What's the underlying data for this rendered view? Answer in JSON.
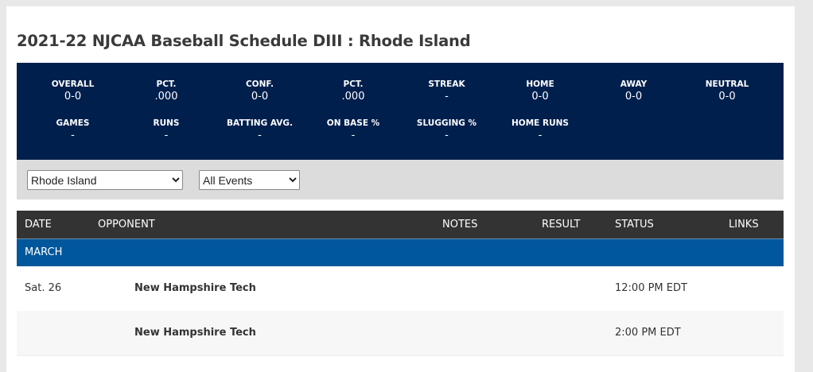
{
  "title": "2021-22 NJCAA Baseball Schedule DIII : Rhode Island",
  "stats": [
    {
      "label": "OVERALL",
      "value": "0-0"
    },
    {
      "label": "PCT.",
      "value": ".000"
    },
    {
      "label": "CONF.",
      "value": "0-0"
    },
    {
      "label": "PCT.",
      "value": ".000"
    },
    {
      "label": "STREAK",
      "value": "-"
    },
    {
      "label": "HOME",
      "value": "0-0"
    },
    {
      "label": "AWAY",
      "value": "0-0"
    },
    {
      "label": "NEUTRAL",
      "value": "0-0"
    },
    {
      "label": "GAMES",
      "value": "-"
    },
    {
      "label": "RUNS",
      "value": "-"
    },
    {
      "label": "BATTING AVG.",
      "value": "-"
    },
    {
      "label": "ON BASE %",
      "value": "-"
    },
    {
      "label": "SLUGGING %",
      "value": "-"
    },
    {
      "label": "HOME RUNS",
      "value": "-"
    }
  ],
  "filters": {
    "team": "Rhode Island",
    "events": "All Events"
  },
  "table": {
    "headers": {
      "date": "DATE",
      "opponent": "OPPONENT",
      "notes": "NOTES",
      "result": "RESULT",
      "status": "STATUS",
      "links": "LINKS"
    },
    "month": "MARCH",
    "rows": [
      {
        "date": "Sat. 26",
        "opponent": "New Hampshire Tech",
        "status": "12:00 PM EDT"
      },
      {
        "date": "",
        "opponent": "New Hampshire Tech",
        "status": "2:00 PM EDT"
      }
    ]
  }
}
